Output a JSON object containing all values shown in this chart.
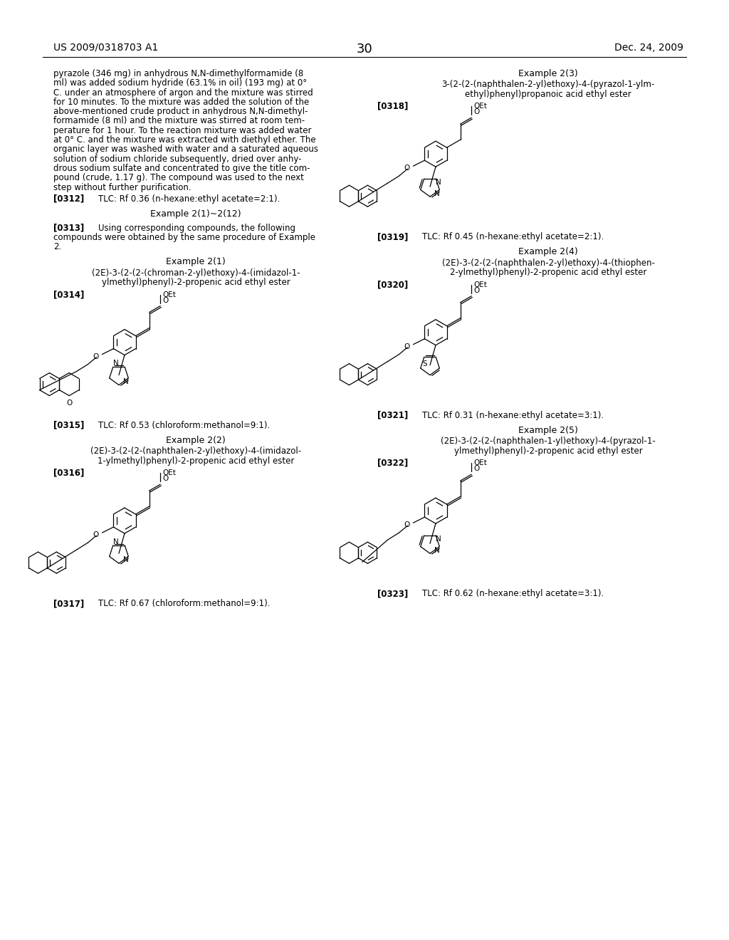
{
  "patent_number": "US 2009/0318703 A1",
  "patent_date": "Dec. 24, 2009",
  "page_number": "30",
  "background_color": "#ffffff",
  "left_para_lines": [
    "pyrazole (346 mg) in anhydrous N,N-dimethylformamide (8",
    "ml) was added sodium hydride (63.1% in oil) (193 mg) at 0°",
    "C. under an atmosphere of argon and the mixture was stirred",
    "for 10 minutes. To the mixture was added the solution of the",
    "above-mentioned crude product in anhydrous N,N-dimethyl-",
    "formamide (8 ml) and the mixture was stirred at room tem-",
    "perature for 1 hour. To the reaction mixture was added water",
    "at 0° C. and the mixture was extracted with diethyl ether. The",
    "organic layer was washed with water and a saturated aqueous",
    "solution of sodium chloride subsequently, dried over anhy-",
    "drous sodium sulfate and concentrated to give the title com-",
    "pound (crude, 1.17 g). The compound was used to the next",
    "step without further purification."
  ],
  "ref0312": "[0312]",
  "ref0312_text": "TLC: Rf 0.36 (n-hexane:ethyl acetate=2:1).",
  "ex_group_title": "Example 2(1)~2(12)",
  "ref0313": "[0313]",
  "ref0313_text1": "Using corresponding compounds, the following",
  "ref0313_text2": "compounds were obtained by the same procedure of Example",
  "ref0313_text3": "2.",
  "ex21_title": "Example 2(1)",
  "ex21_name1": "(2E)-3-(2-(2-(chroman-2-yl)ethoxy)-4-(imidazol-1-",
  "ex21_name2": "ylmethyl)phenyl)-2-propenic acid ethyl ester",
  "ref0314": "[0314]",
  "ref0315": "[0315]",
  "ref0315_text": "TLC: Rf 0.53 (chloroform:methanol=9:1).",
  "ex22_title": "Example 2(2)",
  "ex22_name1": "(2E)-3-(2-(2-(naphthalen-2-yl)ethoxy)-4-(imidazol-",
  "ex22_name2": "1-ylmethyl)phenyl)-2-propenic acid ethyl ester",
  "ref0316": "[0316]",
  "ref0317": "[0317]",
  "ref0317_text": "TLC: Rf 0.67 (chloroform:methanol=9:1).",
  "ex23_title": "Example 2(3)",
  "ex23_name1": "3-(2-(2-(naphthalen-2-yl)ethoxy)-4-(pyrazol-1-ylm-",
  "ex23_name2": "ethyl)phenyl)propanoic acid ethyl ester",
  "ref0318": "[0318]",
  "ref0319": "[0319]",
  "ref0319_text": "TLC: Rf 0.45 (n-hexane:ethyl acetate=2:1).",
  "ex24_title": "Example 2(4)",
  "ex24_name1": "(2E)-3-(2-(2-(naphthalen-2-yl)ethoxy)-4-(thiophen-",
  "ex24_name2": "2-ylmethyl)phenyl)-2-propenic acid ethyl ester",
  "ref0320": "[0320]",
  "ref0321": "[0321]",
  "ref0321_text": "TLC: Rf 0.31 (n-hexane:ethyl acetate=3:1).",
  "ex25_title": "Example 2(5)",
  "ex25_name1": "(2E)-3-(2-(2-(naphthalen-1-yl)ethoxy)-4-(pyrazol-1-",
  "ex25_name2": "ylmethyl)phenyl)-2-propenic acid ethyl ester",
  "ref0322": "[0322]",
  "ref0323": "[0323]",
  "ref0323_text": "TLC: Rf 0.62 (n-hexane:ethyl acetate=3:1)."
}
